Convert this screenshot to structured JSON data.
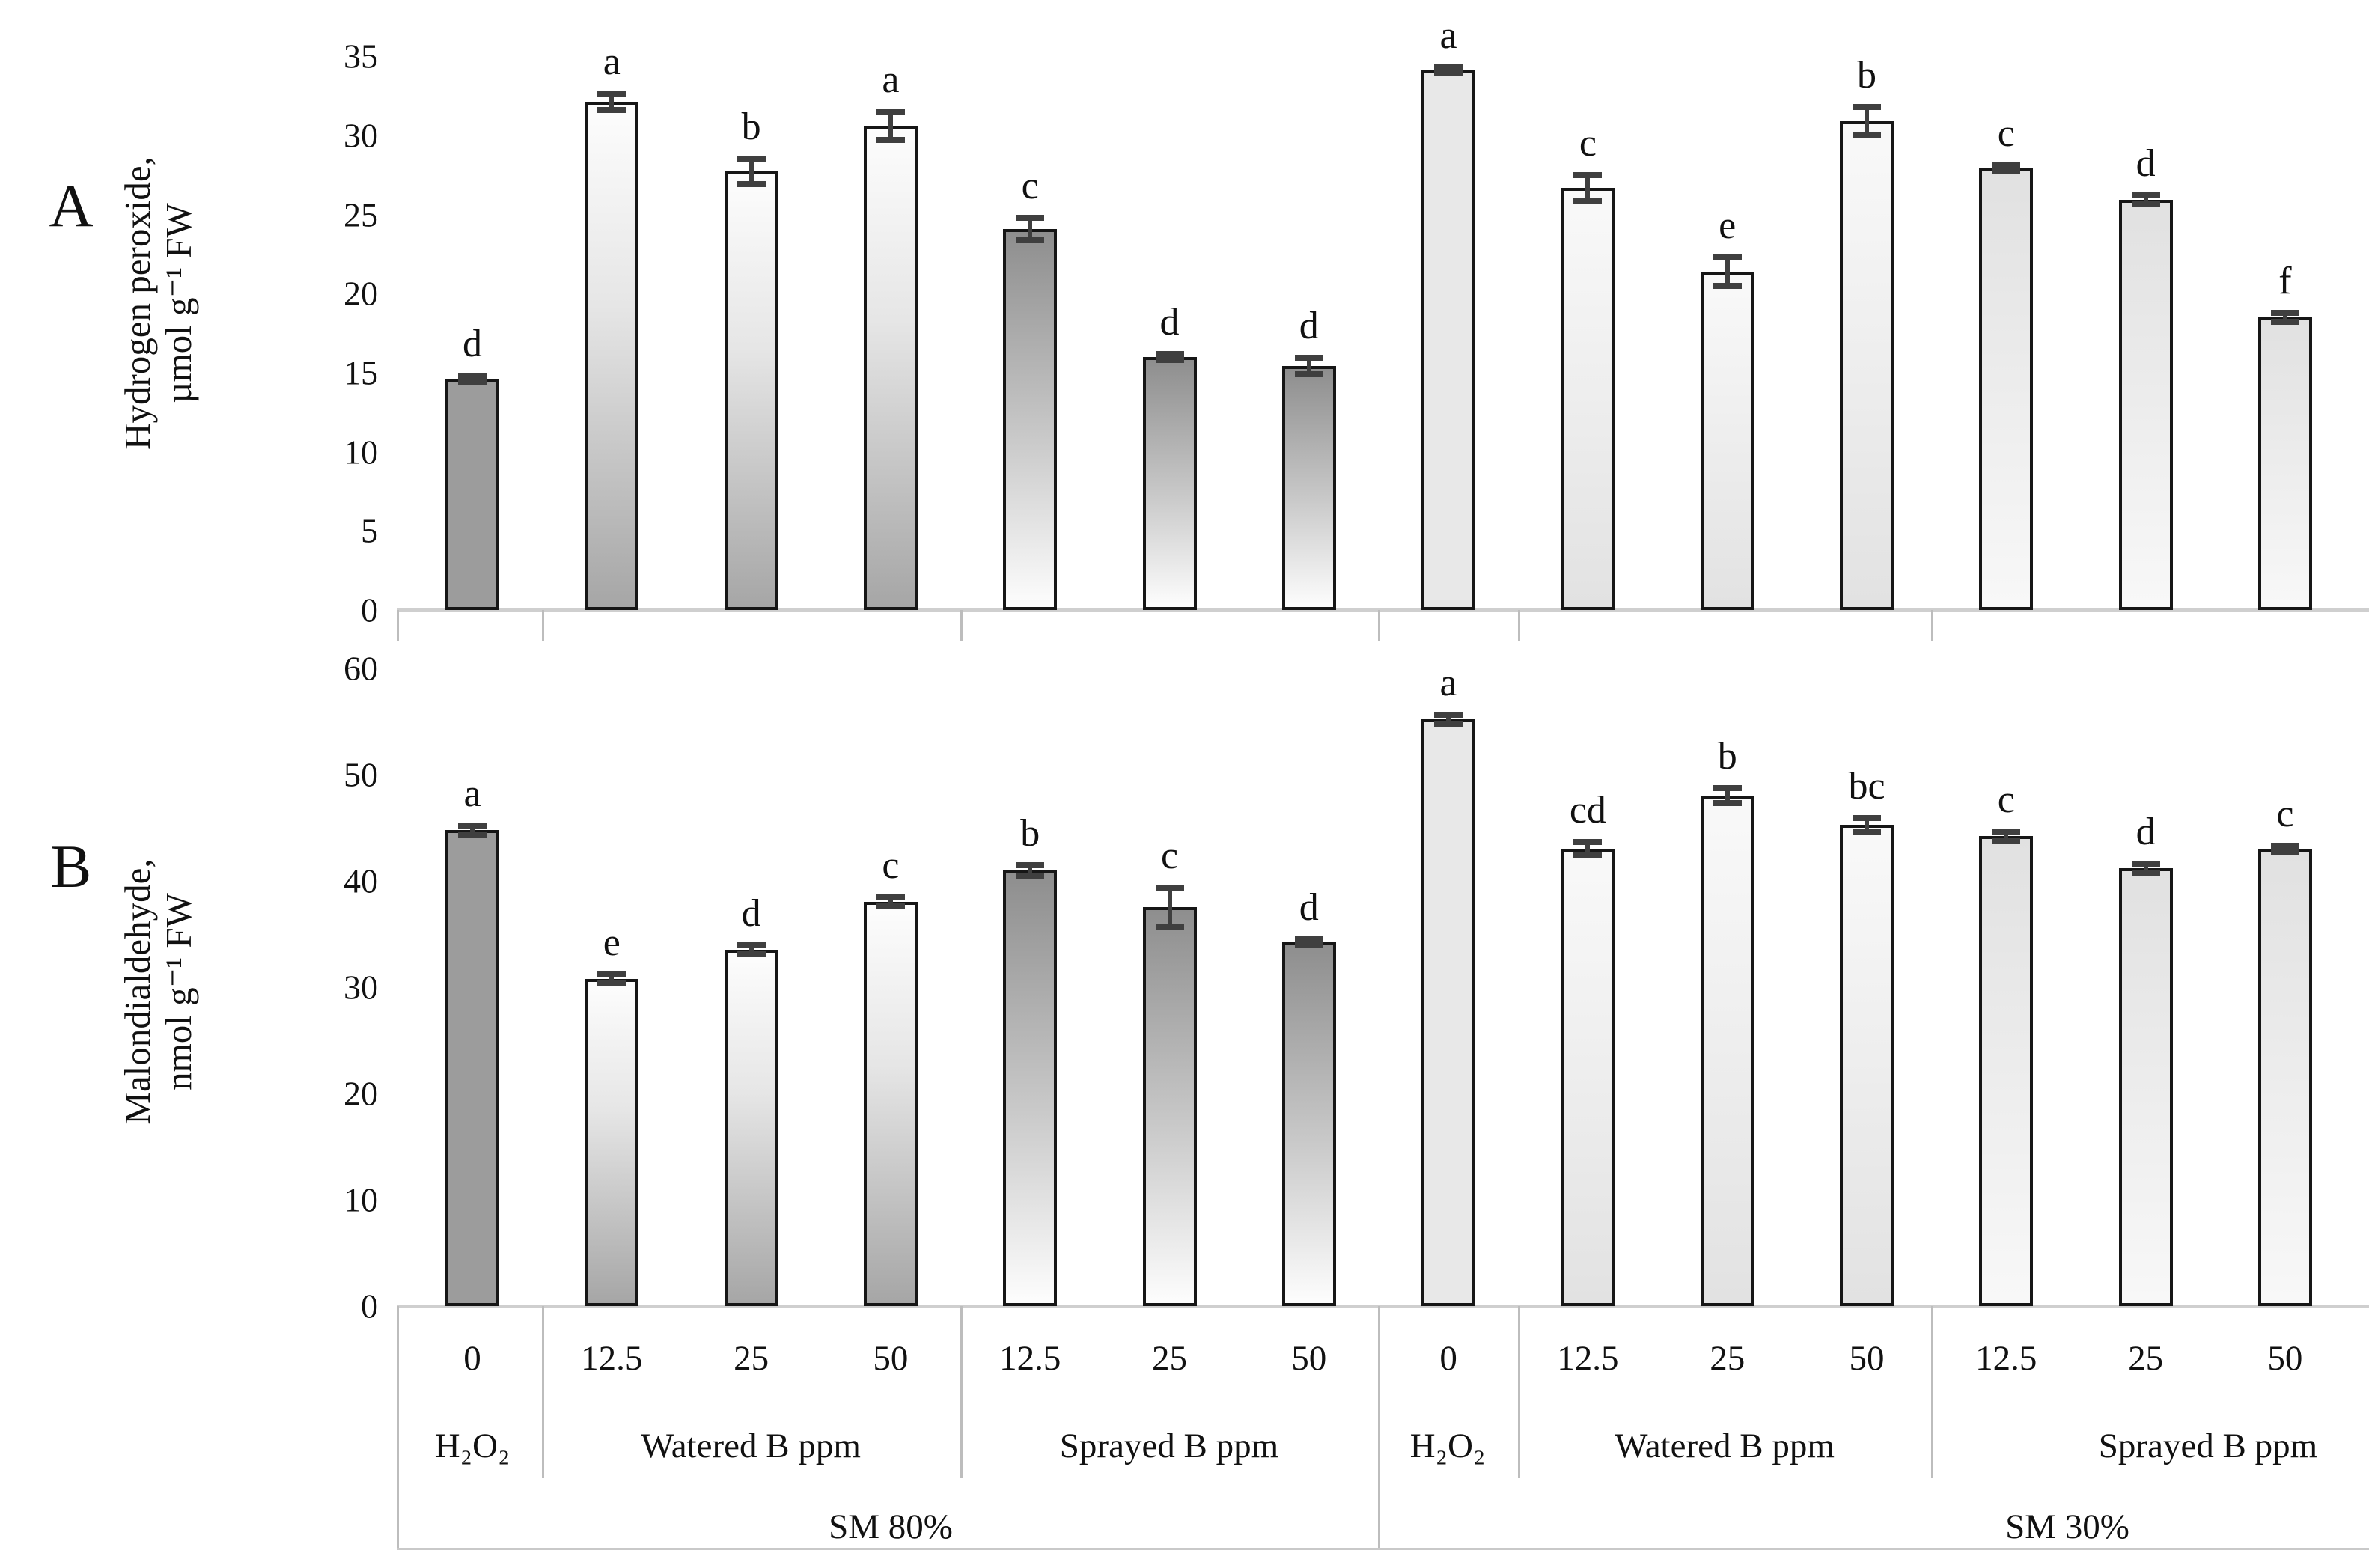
{
  "figure": {
    "panel_a_tag": "A",
    "panel_b_tag": "B"
  },
  "palette": {
    "bar_border": "#161616",
    "h2o2_sm80_fill": "#9c9c9c",
    "watered_sm80_gradient_top": "#fdfdfd",
    "watered_sm80_gradient_bottom": "#a6a6a6",
    "sprayed_sm80_gradient_top": "#8e8e8e",
    "sprayed_sm80_gradient_bottom": "#fdfdfd",
    "sm30_fill_light": "#e8e8e8",
    "error_bar": "#3f3f3f",
    "axis_line": "#cfcfcf",
    "separator_line": "#bdbdbd"
  },
  "chart_data": [
    {
      "type": "bar",
      "panel": "A",
      "ylabel_line1": "Hydrogen peroxide,",
      "ylabel_line2": "µmol g⁻¹ FW",
      "ylim": [
        0,
        35
      ],
      "yticks": [
        0,
        5,
        10,
        15,
        20,
        25,
        30,
        35
      ],
      "grid": false,
      "legend": "none",
      "bars": [
        {
          "sm": "SM 80%",
          "group": "H₂O₂",
          "dose": "0",
          "value": 14.6,
          "error": 0.2,
          "letter": "d",
          "style": "h2o2-80"
        },
        {
          "sm": "SM 80%",
          "group": "Watered B ppm",
          "dose": "12.5",
          "value": 32.1,
          "error": 0.5,
          "letter": "a",
          "style": "watered-80"
        },
        {
          "sm": "SM 80%",
          "group": "Watered B ppm",
          "dose": "25",
          "value": 27.7,
          "error": 0.8,
          "letter": "b",
          "style": "watered-80"
        },
        {
          "sm": "SM 80%",
          "group": "Watered B ppm",
          "dose": "50",
          "value": 30.6,
          "error": 0.9,
          "letter": "a",
          "style": "watered-80"
        },
        {
          "sm": "SM 80%",
          "group": "Sprayed B ppm",
          "dose": "12.5",
          "value": 24.1,
          "error": 0.7,
          "letter": "c",
          "style": "sprayed-80"
        },
        {
          "sm": "SM 80%",
          "group": "Sprayed B ppm",
          "dose": "25",
          "value": 16.0,
          "error": 0.2,
          "letter": "d",
          "style": "sprayed-80"
        },
        {
          "sm": "SM 80%",
          "group": "Sprayed B ppm",
          "dose": "50",
          "value": 15.4,
          "error": 0.5,
          "letter": "d",
          "style": "sprayed-80"
        },
        {
          "sm": "SM 30%",
          "group": "H₂O₂",
          "dose": "0",
          "value": 34.1,
          "error": 0.2,
          "letter": "a",
          "style": "h2o2-30"
        },
        {
          "sm": "SM 30%",
          "group": "Watered B ppm",
          "dose": "12.5",
          "value": 26.7,
          "error": 0.8,
          "letter": "c",
          "style": "watered-30"
        },
        {
          "sm": "SM 30%",
          "group": "Watered B ppm",
          "dose": "25",
          "value": 21.4,
          "error": 0.9,
          "letter": "e",
          "style": "watered-30"
        },
        {
          "sm": "SM 30%",
          "group": "Watered B ppm",
          "dose": "50",
          "value": 30.9,
          "error": 0.9,
          "letter": "b",
          "style": "watered-30"
        },
        {
          "sm": "SM 30%",
          "group": "Sprayed B ppm",
          "dose": "12.5",
          "value": 27.9,
          "error": 0.2,
          "letter": "c",
          "style": "sprayed-30"
        },
        {
          "sm": "SM 30%",
          "group": "Sprayed B ppm",
          "dose": "25",
          "value": 25.9,
          "error": 0.3,
          "letter": "d",
          "style": "sprayed-30"
        },
        {
          "sm": "SM 30%",
          "group": "Sprayed B ppm",
          "dose": "50",
          "value": 18.5,
          "error": 0.3,
          "letter": "f",
          "style": "sprayed-30"
        }
      ]
    },
    {
      "type": "bar",
      "panel": "B",
      "ylabel_line1": "Malondialdehyde,",
      "ylabel_line2": "nmol g⁻¹ FW",
      "ylim": [
        0,
        60
      ],
      "yticks": [
        0,
        10,
        20,
        30,
        40,
        50,
        60
      ],
      "grid": false,
      "legend": "none",
      "bars": [
        {
          "sm": "SM 80%",
          "group": "H₂O₂",
          "dose": "0",
          "value": 44.8,
          "error": 0.4,
          "letter": "a",
          "style": "h2o2-80"
        },
        {
          "sm": "SM 80%",
          "group": "Watered B ppm",
          "dose": "12.5",
          "value": 30.8,
          "error": 0.4,
          "letter": "e",
          "style": "watered-80"
        },
        {
          "sm": "SM 80%",
          "group": "Watered B ppm",
          "dose": "25",
          "value": 33.5,
          "error": 0.4,
          "letter": "d",
          "style": "watered-80"
        },
        {
          "sm": "SM 80%",
          "group": "Watered B ppm",
          "dose": "50",
          "value": 38.0,
          "error": 0.4,
          "letter": "c",
          "style": "watered-80"
        },
        {
          "sm": "SM 80%",
          "group": "Sprayed B ppm",
          "dose": "12.5",
          "value": 41.0,
          "error": 0.5,
          "letter": "b",
          "style": "sprayed-80"
        },
        {
          "sm": "SM 80%",
          "group": "Sprayed B ppm",
          "dose": "25",
          "value": 37.5,
          "error": 1.8,
          "letter": "c",
          "style": "sprayed-80"
        },
        {
          "sm": "SM 80%",
          "group": "Sprayed B ppm",
          "dose": "50",
          "value": 34.2,
          "error": 0.2,
          "letter": "d",
          "style": "sprayed-80"
        },
        {
          "sm": "SM 30%",
          "group": "H₂O₂",
          "dose": "0",
          "value": 55.2,
          "error": 0.4,
          "letter": "a",
          "style": "h2o2-30"
        },
        {
          "sm": "SM 30%",
          "group": "Watered B ppm",
          "dose": "12.5",
          "value": 43.0,
          "error": 0.6,
          "letter": "cd",
          "style": "watered-30"
        },
        {
          "sm": "SM 30%",
          "group": "Watered B ppm",
          "dose": "25",
          "value": 48.0,
          "error": 0.7,
          "letter": "b",
          "style": "watered-30"
        },
        {
          "sm": "SM 30%",
          "group": "Watered B ppm",
          "dose": "50",
          "value": 45.3,
          "error": 0.6,
          "letter": "bc",
          "style": "watered-30"
        },
        {
          "sm": "SM 30%",
          "group": "Sprayed B ppm",
          "dose": "12.5",
          "value": 44.2,
          "error": 0.4,
          "letter": "c",
          "style": "sprayed-30"
        },
        {
          "sm": "SM 30%",
          "group": "Sprayed B ppm",
          "dose": "25",
          "value": 41.2,
          "error": 0.4,
          "letter": "d",
          "style": "sprayed-30"
        },
        {
          "sm": "SM 30%",
          "group": "Sprayed B ppm",
          "dose": "50",
          "value": 43.0,
          "error": 0.2,
          "letter": "c",
          "style": "sprayed-30"
        }
      ]
    }
  ],
  "x_axis": {
    "dose_row": [
      "0",
      "12.5",
      "25",
      "50",
      "12.5",
      "25",
      "50",
      "0",
      "12.5",
      "25",
      "50",
      "12.5",
      "25",
      "50"
    ],
    "treatment_groups": [
      {
        "label": "H₂O₂"
      },
      {
        "label": "Watered B ppm"
      },
      {
        "label": "Sprayed B ppm"
      },
      {
        "label": "H₂O₂"
      },
      {
        "label": "Watered B ppm"
      },
      {
        "label": "Sprayed B ppm"
      }
    ],
    "moisture_groups": [
      {
        "label": "SM 80%"
      },
      {
        "label": "SM 30%"
      }
    ]
  }
}
